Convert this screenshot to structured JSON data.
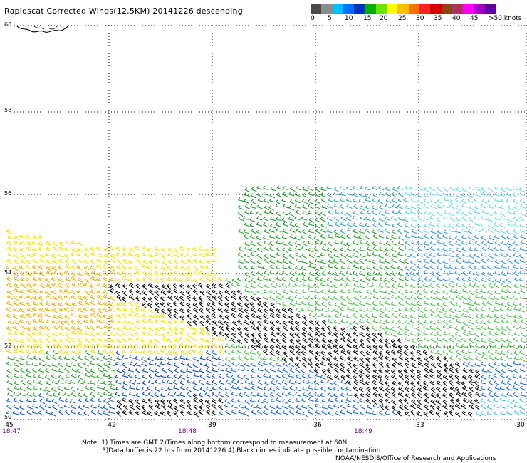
{
  "title": "Rapidscat Corrected Winds(12.5KM) 20141226 descending",
  "legend": {
    "colors": [
      "#4a4a4a",
      "#8c8c8c",
      "#00c0ff",
      "#0070ff",
      "#0030c0",
      "#00b000",
      "#70e000",
      "#ffff00",
      "#ffc000",
      "#ff7000",
      "#ff2020",
      "#d00000",
      "#8b4513",
      "#b03060",
      "#ff00ff",
      "#a000c0",
      "#6000a0"
    ],
    "labels": [
      "0",
      "5",
      "10",
      "15",
      "20",
      "25",
      "30",
      "35",
      "40",
      "45",
      ">50 knots"
    ]
  },
  "map": {
    "lat_labels": [
      "60",
      "58",
      "56",
      "54",
      "52",
      "50"
    ],
    "lon_labels": [
      "-45",
      "-42",
      "-39",
      "-36",
      "-33",
      "-30"
    ],
    "time_labels": [
      "18:47",
      "18:48",
      "18:49"
    ]
  },
  "notes": {
    "line1": "Note: 1) Times are GMT 2)Times along bottom correspond to measurement at 60N",
    "line2": "3)Data buffer is 22 hrs from 20141226 4) Black circles indicate possible contamination",
    "line3": "NOAA/NESDIS/Office of Research and Applications"
  }
}
